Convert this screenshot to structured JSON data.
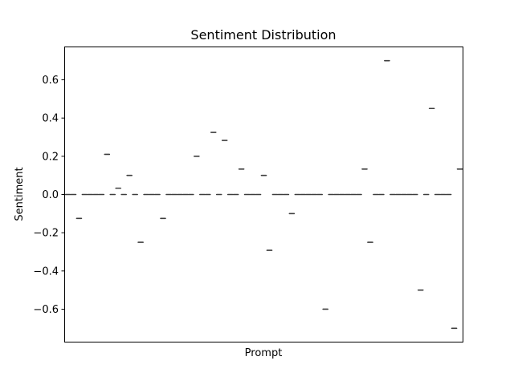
{
  "chart_data": {
    "type": "scatter",
    "title": "Sentiment Distribution",
    "xlabel": "Prompt",
    "ylabel": "Sentiment",
    "ylim": [
      -0.77,
      0.77
    ],
    "yticks": [
      -0.6,
      -0.4,
      -0.2,
      0.0,
      0.2,
      0.4,
      0.6
    ],
    "ytick_labels": [
      "−0.6",
      "−0.4",
      "−0.2",
      "0.0",
      "0.2",
      "0.4",
      "0.6"
    ],
    "grid": false,
    "legend": "none",
    "mark_color": "#3d3d3d",
    "values": [
      0,
      0,
      -0.125,
      0,
      0,
      0,
      0,
      0.21,
      0,
      0.033,
      0,
      0.1,
      0,
      -0.25,
      0,
      0,
      0,
      -0.125,
      0,
      0,
      0,
      0,
      0,
      0.2,
      0,
      0,
      0.325,
      0,
      0.283,
      0,
      0,
      0.133,
      0,
      0,
      0,
      0.1,
      -0.292,
      0,
      0,
      0,
      -0.1,
      0,
      0,
      0,
      0,
      0,
      -0.6,
      0,
      0,
      0,
      0,
      0,
      0,
      0.133,
      -0.25,
      0,
      0,
      0.7,
      0,
      0,
      0,
      0,
      0,
      -0.5,
      0,
      0.45,
      0,
      0,
      0,
      -0.7,
      0.133
    ]
  }
}
